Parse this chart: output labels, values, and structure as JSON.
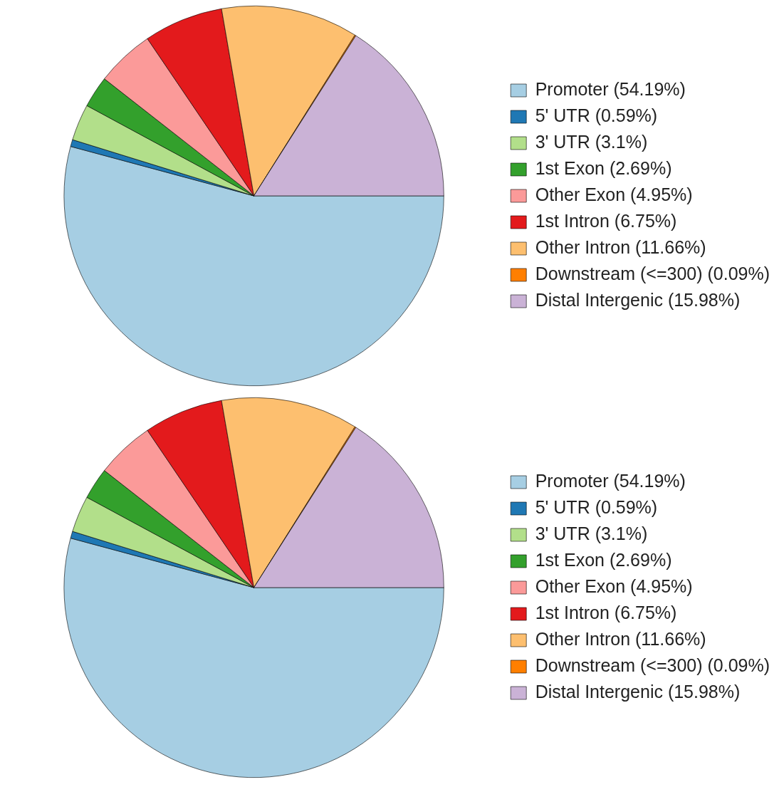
{
  "chart_data": [
    {
      "type": "pie",
      "categories": [
        "Promoter (54.19%)",
        "5' UTR (0.59%)",
        "3' UTR (3.1%)",
        "1st Exon (2.69%)",
        "Other Exon (4.95%)",
        "1st Intron (6.75%)",
        "Other Intron (11.66%)",
        "Downstream (<=300) (0.09%)",
        "Distal Intergenic (15.98%)"
      ],
      "values": [
        54.19,
        0.59,
        3.1,
        2.69,
        4.95,
        6.75,
        11.66,
        0.09,
        15.98
      ],
      "colors": [
        "#a6cee3",
        "#1f78b4",
        "#b2df8a",
        "#33a02c",
        "#fb9a99",
        "#e31a1c",
        "#fdbf6f",
        "#ff7f00",
        "#cab2d6"
      ],
      "legend": "right"
    },
    {
      "type": "pie",
      "categories": [
        "Promoter (54.19%)",
        "5' UTR (0.59%)",
        "3' UTR (3.1%)",
        "1st Exon (2.69%)",
        "Other Exon (4.95%)",
        "1st Intron (6.75%)",
        "Other Intron (11.66%)",
        "Downstream (<=300) (0.09%)",
        "Distal Intergenic (15.98%)"
      ],
      "values": [
        54.19,
        0.59,
        3.1,
        2.69,
        4.95,
        6.75,
        11.66,
        0.09,
        15.98
      ],
      "colors": [
        "#a6cee3",
        "#1f78b4",
        "#b2df8a",
        "#33a02c",
        "#fb9a99",
        "#e31a1c",
        "#fdbf6f",
        "#ff7f00",
        "#cab2d6"
      ],
      "legend": "right"
    }
  ]
}
